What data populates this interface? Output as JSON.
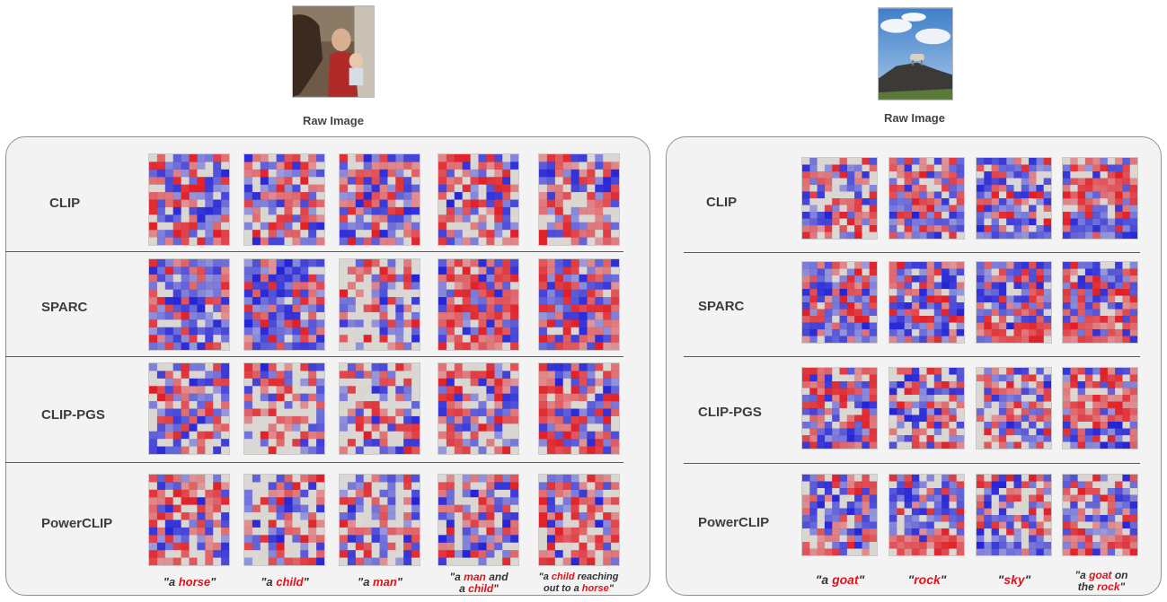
{
  "left": {
    "raw_label": "Raw Image",
    "methods": [
      "CLIP",
      "SPARC",
      "CLIP-PGS",
      "PowerCLIP"
    ],
    "captions": [
      [
        {
          "t": "\"a "
        },
        {
          "t": "horse",
          "em": true
        },
        {
          "t": "\""
        }
      ],
      [
        {
          "t": "\"a "
        },
        {
          "t": "child",
          "em": true
        },
        {
          "t": "\""
        }
      ],
      [
        {
          "t": "\"a "
        },
        {
          "t": "man",
          "em": true
        },
        {
          "t": "\""
        }
      ],
      [
        {
          "t": "\"a "
        },
        {
          "t": "man",
          "em": true
        },
        {
          "t": " and"
        },
        {
          "br": true
        },
        {
          "t": "a "
        },
        {
          "t": "child",
          "em": true
        },
        {
          "t": "\""
        }
      ],
      [
        {
          "t": "\"a "
        },
        {
          "t": "child",
          "em": true
        },
        {
          "t": " reaching"
        },
        {
          "br": true
        },
        {
          "t": "out to a "
        },
        {
          "t": "horse",
          "em": true
        },
        {
          "t": "\""
        }
      ]
    ]
  },
  "right": {
    "raw_label": "Raw Image",
    "methods": [
      "CLIP",
      "SPARC",
      "CLIP-PGS",
      "PowerCLIP"
    ],
    "captions": [
      [
        {
          "t": "\"a "
        },
        {
          "t": "goat",
          "em": true
        },
        {
          "t": "\""
        }
      ],
      [
        {
          "t": "\""
        },
        {
          "t": "rock",
          "em": true
        },
        {
          "t": "\""
        }
      ],
      [
        {
          "t": "\""
        },
        {
          "t": "sky",
          "em": true
        },
        {
          "t": "\""
        }
      ],
      [
        {
          "t": "\"a "
        },
        {
          "t": "goat",
          "em": true
        },
        {
          "t": " on"
        },
        {
          "br": true
        },
        {
          "t": "the "
        },
        {
          "t": "rock",
          "em": true
        },
        {
          "t": "\""
        }
      ]
    ]
  },
  "colors": {
    "red": "#e0131b",
    "blue": "#1a1ad6",
    "neutral": "#d9d4ce"
  }
}
